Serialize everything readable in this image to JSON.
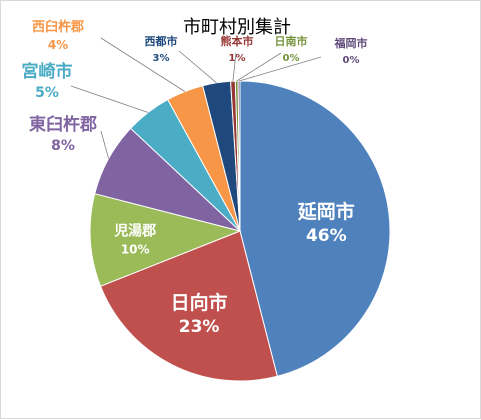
{
  "chart_data": {
    "type": "pie",
    "title": "市町村別集計",
    "slices": [
      {
        "name": "延岡市",
        "value": 46,
        "label": "46%",
        "color": "#4f81bd",
        "label_color": "#ffffff"
      },
      {
        "name": "日向市",
        "value": 23,
        "label": "23%",
        "color": "#c0504d",
        "label_color": "#ffffff"
      },
      {
        "name": "児湯郡",
        "value": 10,
        "label": "10%",
        "color": "#9bbb59",
        "label_color": "#ffffff"
      },
      {
        "name": "東臼杵郡",
        "value": 8,
        "label": "8%",
        "color": "#8064a2",
        "label_color": "#8064a2"
      },
      {
        "name": "宮崎市",
        "value": 5,
        "label": "5%",
        "color": "#4bacc6",
        "label_color": "#4bacc6"
      },
      {
        "name": "西臼杵郡",
        "value": 4,
        "label": "4%",
        "color": "#f79646",
        "label_color": "#f79646"
      },
      {
        "name": "西都市",
        "value": 3,
        "label": "3%",
        "color": "#1f497d",
        "label_color": "#1f497d"
      },
      {
        "name": "熊本市",
        "value": 0.5,
        "label": "1%",
        "color": "#953735",
        "label_color": "#953735"
      },
      {
        "name": "日南市",
        "value": 0.3,
        "label": "0%",
        "color": "#77933c",
        "label_color": "#77933c"
      },
      {
        "name": "福岡市",
        "value": 0.2,
        "label": "0%",
        "color": "#604a7b",
        "label_color": "#604a7b"
      }
    ],
    "legend": "none",
    "data_labels": "category-and-percentage"
  }
}
